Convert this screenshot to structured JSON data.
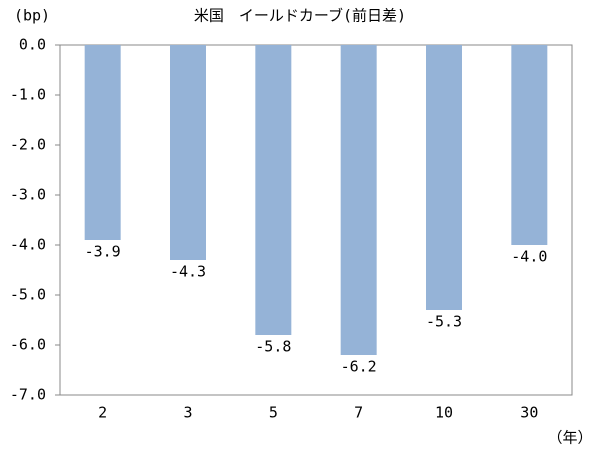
{
  "chart_data": {
    "type": "bar",
    "title": "米国　イールドカーブ(前日差)",
    "y_label": "(bp)",
    "x_label": "（年）",
    "categories": [
      "2",
      "3",
      "5",
      "7",
      "10",
      "30"
    ],
    "values": [
      -3.9,
      -4.3,
      -5.8,
      -6.2,
      -5.3,
      -4.0
    ],
    "value_labels": [
      "-3.9",
      "-4.3",
      "-5.8",
      "-6.2",
      "-5.3",
      "-4.0"
    ],
    "color": "#95b3d7",
    "ylim": [
      -7,
      0
    ],
    "yticks": [
      {
        "value": 0,
        "label": "0.0"
      },
      {
        "value": -1,
        "label": "-1.0"
      },
      {
        "value": -2,
        "label": "-2.0"
      },
      {
        "value": -3,
        "label": "-3.0"
      },
      {
        "value": -4,
        "label": "-4.0"
      },
      {
        "value": -5,
        "label": "-5.0"
      },
      {
        "value": -6,
        "label": "-6.0"
      },
      {
        "value": -7,
        "label": "-7.0"
      }
    ],
    "grid": false
  }
}
